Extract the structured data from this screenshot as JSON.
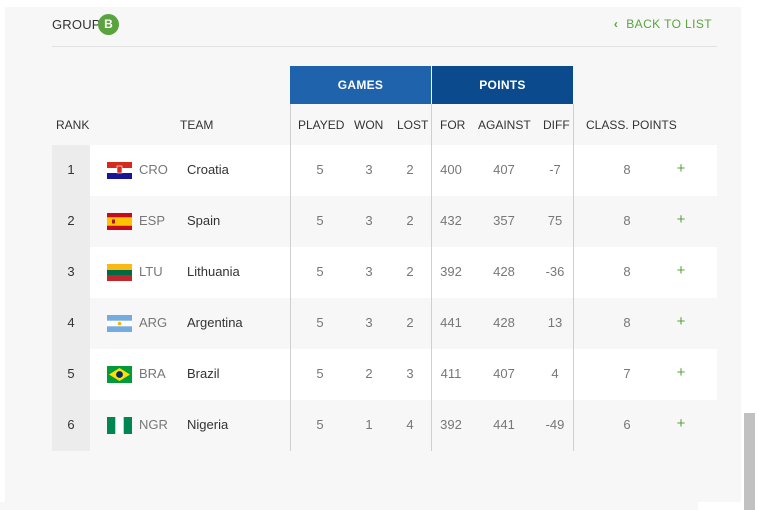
{
  "header": {
    "group_label": "GROUP",
    "group_letter": "B",
    "back_label": "BACK TO LIST"
  },
  "groups": {
    "games": "GAMES",
    "points": "POINTS"
  },
  "columns": {
    "rank": "RANK",
    "team": "TEAM",
    "played": "PLAYED",
    "won": "WON",
    "lost": "LOST",
    "for": "FOR",
    "against": "AGAINST",
    "diff": "DIFF",
    "class_points": "CLASS. POINTS"
  },
  "expand_symbol": "+",
  "colors": {
    "accent_green": "#5ba33e",
    "games_header": "#1f63ac",
    "points_header": "#0b4a8c"
  },
  "rows": [
    {
      "rank": "1",
      "code": "CRO",
      "team": "Croatia",
      "flag": "croatia-flag-icon",
      "played": "5",
      "won": "3",
      "lost": "2",
      "for": "400",
      "against": "407",
      "diff": "-7",
      "class_points": "8"
    },
    {
      "rank": "2",
      "code": "ESP",
      "team": "Spain",
      "flag": "spain-flag-icon",
      "played": "5",
      "won": "3",
      "lost": "2",
      "for": "432",
      "against": "357",
      "diff": "75",
      "class_points": "8"
    },
    {
      "rank": "3",
      "code": "LTU",
      "team": "Lithuania",
      "flag": "lithuania-flag-icon",
      "played": "5",
      "won": "3",
      "lost": "2",
      "for": "392",
      "against": "428",
      "diff": "-36",
      "class_points": "8"
    },
    {
      "rank": "4",
      "code": "ARG",
      "team": "Argentina",
      "flag": "argentina-flag-icon",
      "played": "5",
      "won": "3",
      "lost": "2",
      "for": "441",
      "against": "428",
      "diff": "13",
      "class_points": "8"
    },
    {
      "rank": "5",
      "code": "BRA",
      "team": "Brazil",
      "flag": "brazil-flag-icon",
      "played": "5",
      "won": "2",
      "lost": "3",
      "for": "411",
      "against": "407",
      "diff": "4",
      "class_points": "7"
    },
    {
      "rank": "6",
      "code": "NGR",
      "team": "Nigeria",
      "flag": "nigeria-flag-icon",
      "played": "5",
      "won": "1",
      "lost": "4",
      "for": "392",
      "against": "441",
      "diff": "-49",
      "class_points": "6"
    }
  ]
}
